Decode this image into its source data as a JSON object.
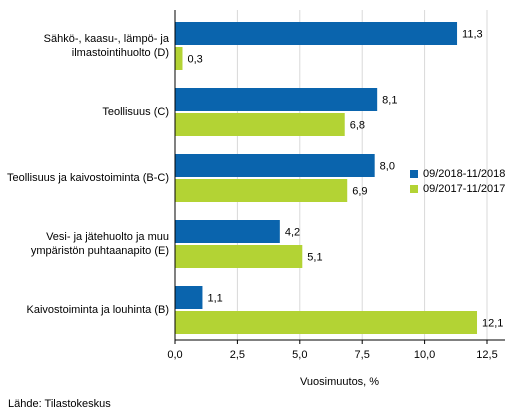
{
  "chart_data": {
    "type": "bar",
    "orientation": "horizontal",
    "categories": [
      "Sähkö-, kaasu-, lämpö- ja ilmastointihuolto (D)",
      "Teollisuus (C)",
      "Teollisuus ja kaivostoiminta (B-C)",
      "Vesi- ja jätehuolto ja muu ympäristön puhtaanapito (E)",
      "Kaivostoiminta ja louhinta (B)"
    ],
    "category_lines": [
      [
        "Sähkö-, kaasu-, lämpö- ja",
        "ilmastointihuolto (D)"
      ],
      [
        "Teollisuus (C)"
      ],
      [
        "Teollisuus ja kaivostoiminta (B-C)"
      ],
      [
        "Vesi- ja jätehuolto ja muu",
        "ympäristön puhtaanapito (E)"
      ],
      [
        "Kaivostoiminta ja louhinta (B)"
      ]
    ],
    "series": [
      {
        "name": "09/2018-11/2018",
        "color": "#0a64ad",
        "values": [
          11.3,
          8.1,
          8.0,
          4.2,
          1.1
        ],
        "labels": [
          "11,3",
          "8,1",
          "8,0",
          "4,2",
          "1,1"
        ]
      },
      {
        "name": "09/2017-11/2017",
        "color": "#b3d334",
        "values": [
          0.3,
          6.8,
          6.9,
          5.1,
          12.1
        ],
        "labels": [
          "0,3",
          "6,8",
          "6,9",
          "5,1",
          "12,1"
        ]
      }
    ],
    "xlim": [
      0,
      12.5
    ],
    "xticks": [
      0,
      2.5,
      5,
      7.5,
      10,
      12.5
    ],
    "xtick_labels": [
      "0,0",
      "2,5",
      "5,0",
      "7,5",
      "10,0",
      "12,5"
    ],
    "xlabel": "Vuosimuutos, %",
    "ylabel": "",
    "title": "",
    "grid": "vertical",
    "legend_position": "right"
  },
  "source": "Lähde: Tilastokeskus"
}
